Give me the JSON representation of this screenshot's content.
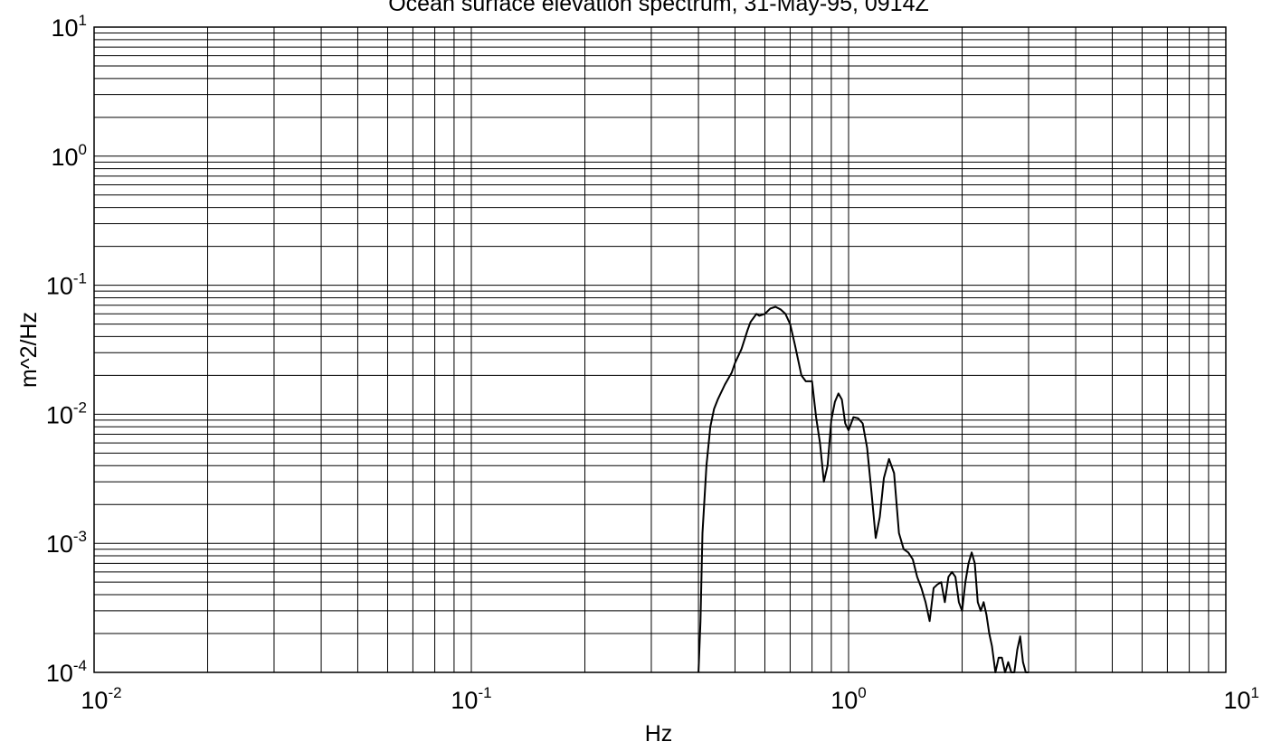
{
  "chart_data": {
    "type": "line",
    "title": "Ocean surface elevation spectrum, 31-May-95, 0914Z",
    "xlabel": "Hz",
    "ylabel": "m^2/Hz",
    "x_scale": "log",
    "y_scale": "log",
    "xlim": [
      0.01,
      10
    ],
    "ylim": [
      0.0001,
      10
    ],
    "grid": true,
    "legend": "none",
    "x_ticks": [
      {
        "base": "10",
        "exp": "-2"
      },
      {
        "base": "10",
        "exp": "-1"
      },
      {
        "base": "10",
        "exp": "0"
      },
      {
        "base": "10",
        "exp": "1"
      }
    ],
    "y_ticks": [
      {
        "base": "10",
        "exp": "1"
      },
      {
        "base": "10",
        "exp": "0"
      },
      {
        "base": "10",
        "exp": "-1"
      },
      {
        "base": "10",
        "exp": "-2"
      },
      {
        "base": "10",
        "exp": "-3"
      },
      {
        "base": "10",
        "exp": "-4"
      }
    ],
    "series": [
      {
        "color": "#000000",
        "x": [
          0.4,
          0.405,
          0.41,
          0.42,
          0.43,
          0.44,
          0.45,
          0.47,
          0.49,
          0.5,
          0.52,
          0.54,
          0.55,
          0.57,
          0.58,
          0.6,
          0.62,
          0.64,
          0.66,
          0.68,
          0.7,
          0.72,
          0.75,
          0.77,
          0.78,
          0.8,
          0.82,
          0.84,
          0.86,
          0.88,
          0.9,
          0.92,
          0.94,
          0.96,
          0.98,
          1.0,
          1.03,
          1.06,
          1.09,
          1.12,
          1.15,
          1.18,
          1.21,
          1.24,
          1.28,
          1.32,
          1.36,
          1.4,
          1.44,
          1.48,
          1.52,
          1.56,
          1.6,
          1.64,
          1.68,
          1.72,
          1.76,
          1.8,
          1.84,
          1.88,
          1.92,
          1.96,
          2.0,
          2.04,
          2.08,
          2.12,
          2.16,
          2.2,
          2.24,
          2.28,
          2.32,
          2.36,
          2.4,
          2.45,
          2.5,
          2.55,
          2.6,
          2.65,
          2.7,
          2.75,
          2.8,
          2.85,
          2.9,
          2.95,
          3.0
        ],
        "y": [
          0.0001,
          0.00025,
          0.0012,
          0.004,
          0.008,
          0.011,
          0.013,
          0.017,
          0.021,
          0.025,
          0.032,
          0.045,
          0.052,
          0.06,
          0.058,
          0.06,
          0.066,
          0.068,
          0.065,
          0.06,
          0.05,
          0.035,
          0.02,
          0.018,
          0.018,
          0.018,
          0.0095,
          0.006,
          0.003,
          0.004,
          0.009,
          0.0125,
          0.0145,
          0.013,
          0.0085,
          0.0075,
          0.0095,
          0.0093,
          0.0085,
          0.0055,
          0.0025,
          0.0011,
          0.0016,
          0.0032,
          0.0045,
          0.0035,
          0.0012,
          0.0009,
          0.00085,
          0.00075,
          0.00055,
          0.00045,
          0.00035,
          0.00025,
          0.00045,
          0.00048,
          0.0005,
          0.00035,
          0.00055,
          0.0006,
          0.00055,
          0.00035,
          0.0003,
          0.0005,
          0.0007,
          0.00085,
          0.0007,
          0.00035,
          0.0003,
          0.00035,
          0.00028,
          0.0002,
          0.00016,
          0.0001,
          0.00013,
          0.00013,
          0.0001,
          0.00012,
          0.0001,
          0.0001,
          0.00015,
          0.00019,
          0.00012,
          0.0001,
          0.0001
        ]
      }
    ]
  }
}
